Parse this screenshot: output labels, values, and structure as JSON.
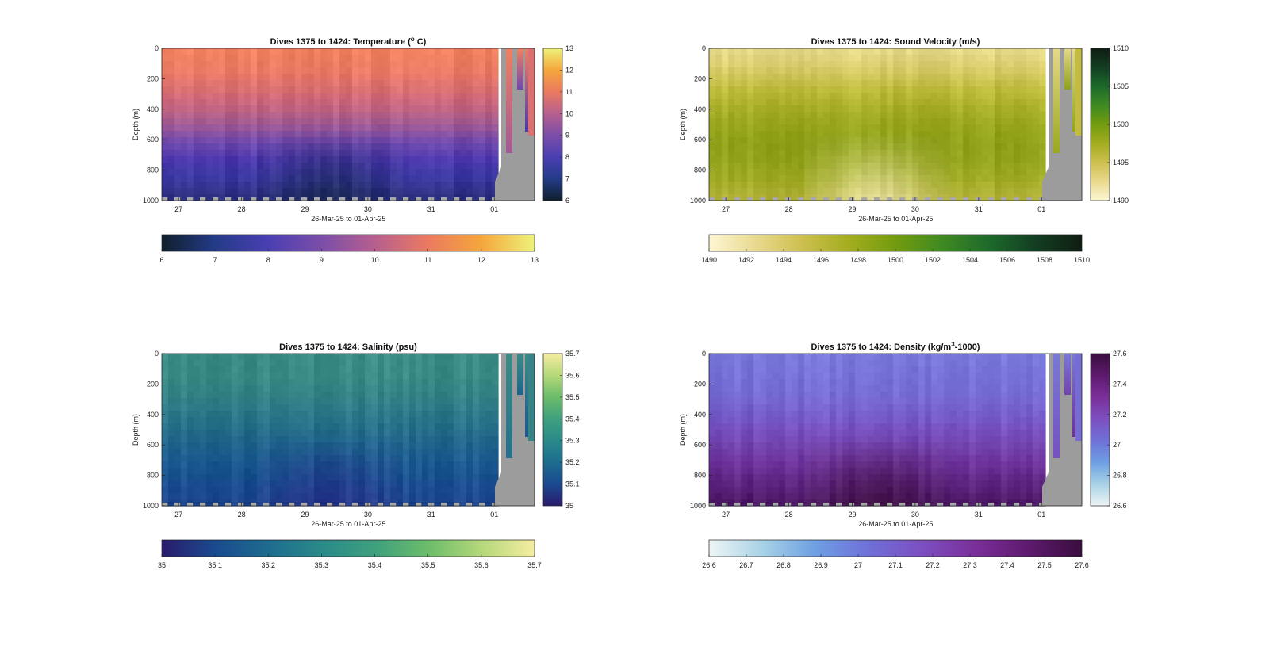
{
  "chart_data": [
    {
      "type": "heatmap",
      "title": "Dives 1375 to 1424: Temperature (° C)",
      "title_parts": [
        "Dives 1375 to 1424: Temperature (",
        "o",
        " C)"
      ],
      "ylabel": "Depth (m)",
      "xlabel": "26-Mar-25 to 01-Apr-25",
      "x_ticks": [
        "27",
        "28",
        "29",
        "30",
        "31",
        "01"
      ],
      "y_ticks": [
        "0",
        "200",
        "400",
        "600",
        "800",
        "1000"
      ],
      "ylim": [
        1000,
        0
      ],
      "right_colorbar_ticks": [
        "6",
        "7",
        "8",
        "9",
        "10",
        "11",
        "12",
        "13"
      ],
      "bottom_colorbar_ticks": [
        "6",
        "7",
        "8",
        "9",
        "10",
        "11",
        "12",
        "13"
      ],
      "clim": [
        6,
        13
      ],
      "colors": [
        "#0f1f2c",
        "#243b87",
        "#4a3fb2",
        "#7b4ea8",
        "#b65f8f",
        "#ea7a60",
        "#f5a63c",
        "#edf27a"
      ],
      "profile_hex": [
        "#f08060",
        "#ec7c63",
        "#dc7070",
        "#c6657f",
        "#a05a94",
        "#6e48ad",
        "#4a38ad",
        "#3a38a0",
        "#2c2f7e"
      ],
      "cool_patch_hex": "#1b2a50"
    },
    {
      "type": "heatmap",
      "title": "Dives 1375 to 1424: Sound Velocity (m/s)",
      "title_parts": [
        "Dives 1375 to 1424: Sound Velocity (m/s)",
        "",
        ""
      ],
      "ylabel": "Depth (m)",
      "xlabel": "26-Mar-25 to 01-Apr-25",
      "x_ticks": [
        "27",
        "28",
        "29",
        "30",
        "31",
        "01"
      ],
      "y_ticks": [
        "0",
        "200",
        "400",
        "600",
        "800",
        "1000"
      ],
      "ylim": [
        1000,
        0
      ],
      "right_colorbar_ticks": [
        "1490",
        "1495",
        "1500",
        "1505",
        "1510"
      ],
      "bottom_colorbar_ticks": [
        "1490",
        "1492",
        "1494",
        "1496",
        "1498",
        "1500",
        "1502",
        "1504",
        "1506",
        "1508",
        "1510"
      ],
      "clim": [
        1490,
        1510
      ],
      "colors": [
        "#fdf6d3",
        "#e9d98f",
        "#cdbf4f",
        "#a3ad1f",
        "#739b0f",
        "#3f8a22",
        "#1d6a2b",
        "#133e22",
        "#0f1d12"
      ],
      "profile_hex": [
        "#e6d889",
        "#d8cc6a",
        "#c2bd40",
        "#acb02a",
        "#9aa81f",
        "#8ea21a",
        "#93a41c",
        "#a0aa24",
        "#b2b336"
      ],
      "cool_patch_hex": "#f3e9b5"
    },
    {
      "type": "heatmap",
      "title": "Dives 1375 to 1424: Salinity (psu)",
      "title_parts": [
        "Dives 1375 to 1424: Salinity (psu)",
        "",
        ""
      ],
      "ylabel": "Depth (m)",
      "xlabel": "26-Mar-25 to 01-Apr-25",
      "x_ticks": [
        "27",
        "28",
        "29",
        "30",
        "31",
        "01"
      ],
      "y_ticks": [
        "0",
        "200",
        "400",
        "600",
        "800",
        "1000"
      ],
      "ylim": [
        1000,
        0
      ],
      "right_colorbar_ticks": [
        "35",
        "35.1",
        "35.2",
        "35.3",
        "35.4",
        "35.5",
        "35.6",
        "35.7"
      ],
      "bottom_colorbar_ticks": [
        "35",
        "35.1",
        "35.2",
        "35.3",
        "35.4",
        "35.5",
        "35.6",
        "35.7"
      ],
      "clim": [
        35,
        35.7
      ],
      "colors": [
        "#2a1b6c",
        "#1a4a8f",
        "#1e6c8f",
        "#2a8a8a",
        "#3ea07e",
        "#6cbc6a",
        "#b4d87a",
        "#f5eda0"
      ],
      "profile_hex": [
        "#3b8c86",
        "#3a8a86",
        "#368487",
        "#2f7b89",
        "#276f8c",
        "#20638e",
        "#1c5890",
        "#1b4f91",
        "#20488f"
      ],
      "cool_patch_hex": "#2a2f88"
    },
    {
      "type": "heatmap",
      "title": "Dives 1375 to 1424: Density (kg/m³-1000)",
      "title_parts": [
        "Dives 1375 to 1424: Density (kg/m",
        "3",
        "-1000)"
      ],
      "ylabel": "Depth (m)",
      "xlabel": "26-Mar-25 to 01-Apr-25",
      "x_ticks": [
        "27",
        "28",
        "29",
        "30",
        "31",
        "01"
      ],
      "y_ticks": [
        "0",
        "200",
        "400",
        "600",
        "800",
        "1000"
      ],
      "ylim": [
        1000,
        0
      ],
      "right_colorbar_ticks": [
        "26.6",
        "26.8",
        "27",
        "27.2",
        "27.4",
        "27.6"
      ],
      "bottom_colorbar_ticks": [
        "26.6",
        "26.7",
        "26.8",
        "26.9",
        "27",
        "27.1",
        "27.2",
        "27.3",
        "27.4",
        "27.5",
        "27.6"
      ],
      "clim": [
        26.6,
        27.6
      ],
      "colors": [
        "#eef5f5",
        "#a8d2e6",
        "#6d9fe3",
        "#6f70d8",
        "#7d4fc0",
        "#7a2f9a",
        "#5e1a6e",
        "#3a0d3f"
      ],
      "profile_hex": [
        "#7878da",
        "#7672d8",
        "#766cd4",
        "#7660cc",
        "#7650bf",
        "#7442ad",
        "#6c3298",
        "#5e2480",
        "#4e1a68"
      ],
      "cool_patch_hex": "#3e103f"
    }
  ]
}
